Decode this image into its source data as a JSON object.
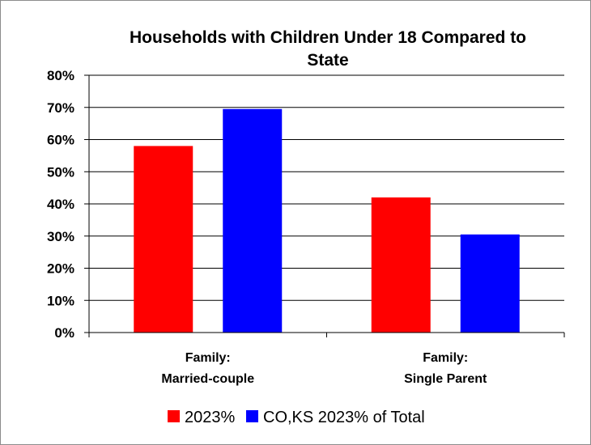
{
  "chart_data": {
    "type": "bar",
    "title_lines": [
      "Households with Children Under 18 Compared to",
      "State"
    ],
    "categories": [
      [
        "Family:",
        "Married-couple"
      ],
      [
        "Family:",
        "Single Parent"
      ]
    ],
    "series": [
      {
        "name": "2023%",
        "values": [
          58,
          42
        ],
        "color": "#ff0000"
      },
      {
        "name": "CO,KS 2023% of Total",
        "values": [
          69.5,
          30.5
        ],
        "color": "#0000ff"
      }
    ],
    "ylim": [
      0,
      80
    ],
    "ytick_values": [
      0,
      10,
      20,
      30,
      40,
      50,
      60,
      70,
      80
    ],
    "ytick_labels": [
      "0%",
      "10%",
      "20%",
      "30%",
      "40%",
      "50%",
      "60%",
      "70%",
      "80%"
    ],
    "grid": true,
    "legend_position": "bottom"
  }
}
